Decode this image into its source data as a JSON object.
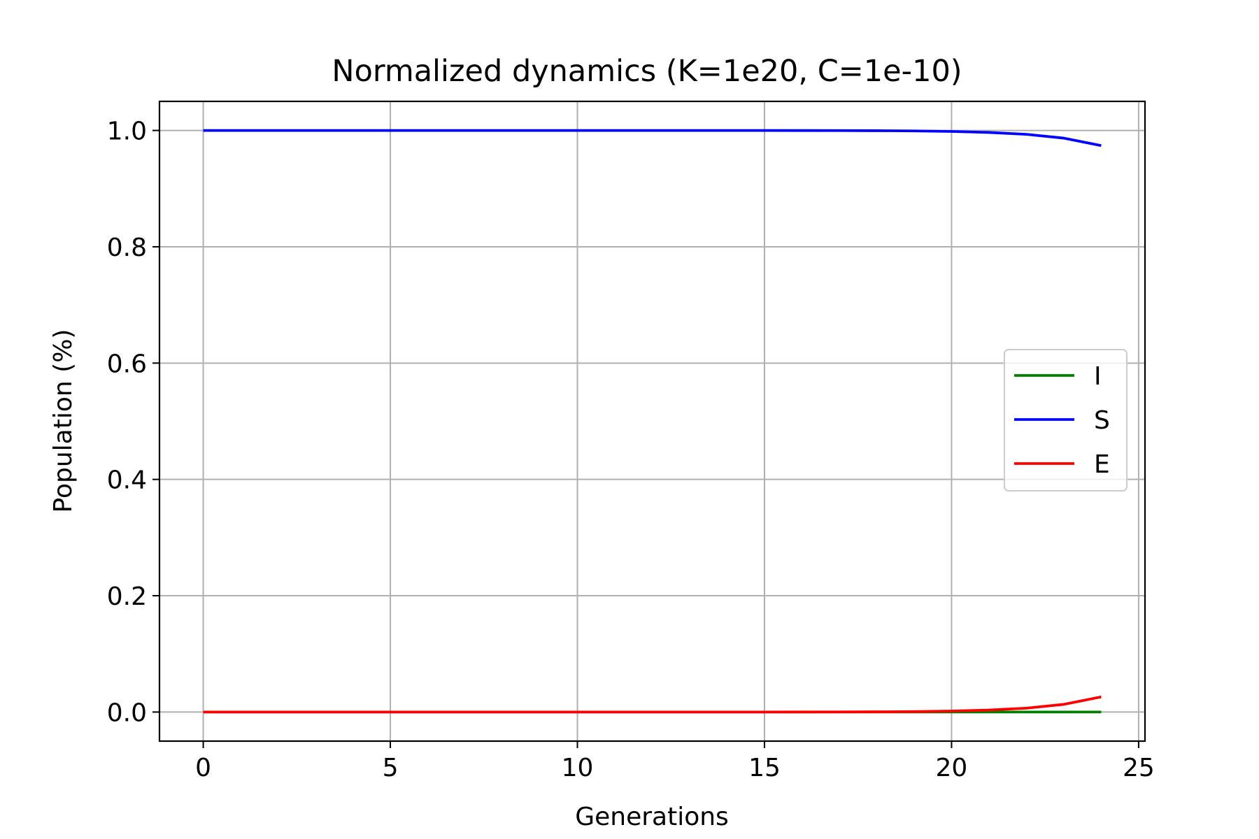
{
  "chart_data": {
    "type": "line",
    "title": "Normalized dynamics (K=1e20, C=1e-10)",
    "xlabel": "Generations",
    "ylabel": "Population (%)",
    "xlim": [
      -1.17,
      25.17
    ],
    "ylim": [
      -0.05,
      1.05
    ],
    "xticks": [
      0,
      5,
      10,
      15,
      20,
      25
    ],
    "xtick_labels": [
      "0",
      "5",
      "10",
      "15",
      "20",
      "25"
    ],
    "yticks": [
      0.0,
      0.2,
      0.4,
      0.6,
      0.8,
      1.0
    ],
    "ytick_labels": [
      "0.0",
      "0.2",
      "0.4",
      "0.6",
      "0.8",
      "1.0"
    ],
    "grid": true,
    "legend": {
      "placement": "center-right"
    },
    "x": [
      0,
      1,
      2,
      3,
      4,
      5,
      6,
      7,
      8,
      9,
      10,
      11,
      12,
      13,
      14,
      15,
      16,
      17,
      18,
      19,
      20,
      21,
      22,
      23,
      24
    ],
    "series": [
      {
        "name": "I",
        "color": "#008000",
        "values": [
          0,
          0,
          0,
          0,
          0,
          0,
          0,
          0,
          0,
          0,
          0,
          0,
          0,
          0,
          0,
          0,
          0,
          0,
          0,
          0,
          0,
          0,
          0,
          0,
          0
        ]
      },
      {
        "name": "S",
        "color": "#0000ff",
        "values": [
          1.0,
          1.0,
          1.0,
          1.0,
          1.0,
          1.0,
          1.0,
          1.0,
          1.0,
          1.0,
          1.0,
          1.0,
          1.0,
          1.0,
          1.0,
          1.0,
          0.9999,
          0.9998,
          0.9996,
          0.9992,
          0.9983,
          0.9966,
          0.9933,
          0.9868,
          0.974
        ]
      },
      {
        "name": "E",
        "color": "#ff0000",
        "values": [
          0,
          0,
          0,
          0,
          0,
          0,
          0,
          0,
          0,
          0,
          0,
          0,
          0,
          0,
          0,
          0,
          0.0001,
          0.0002,
          0.0004,
          0.0008,
          0.0017,
          0.0034,
          0.0067,
          0.0132,
          0.026
        ]
      }
    ]
  }
}
